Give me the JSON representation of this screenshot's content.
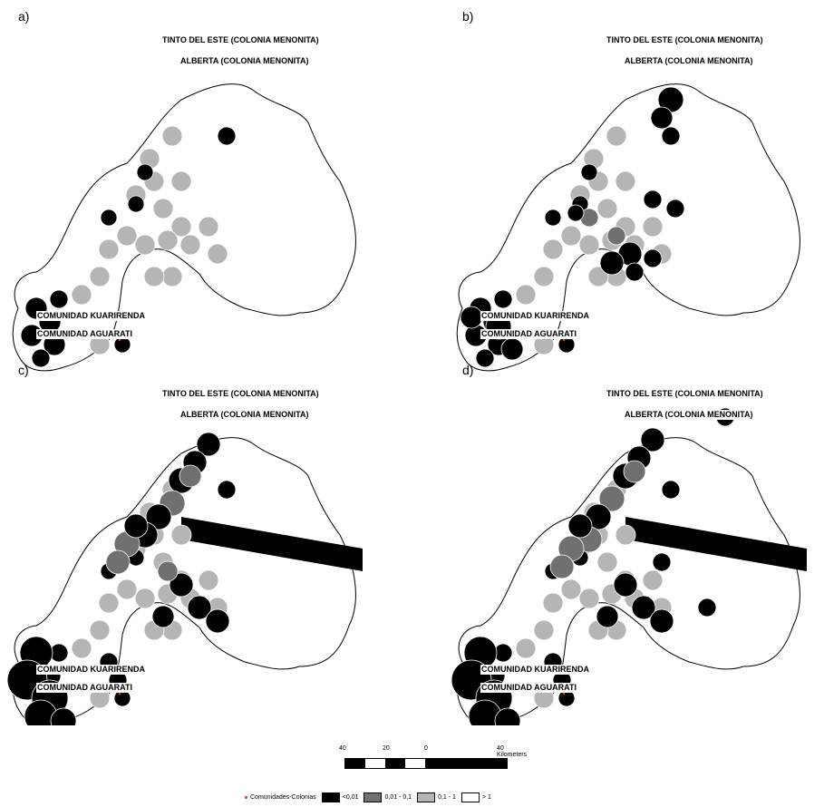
{
  "panels": [
    {
      "id": "a",
      "label": "a)"
    },
    {
      "id": "b",
      "label": "b)"
    },
    {
      "id": "c",
      "label": "c)"
    },
    {
      "id": "d",
      "label": "d)"
    }
  ],
  "places": {
    "tinto": "TINTO DEL ESTE (COLONIA MENONITA)",
    "alberta": "ALBERTA (COLONIA MENONITA)",
    "kuarirenda": "COMUNIDAD KUARIRENDA",
    "aguarati": "COMUNIDAD AGUARATI"
  },
  "scale": {
    "ticks": [
      "40",
      "20",
      "0",
      "40 Kilometers"
    ]
  },
  "legend": {
    "communities": "Comunidades-Colonias",
    "classes": [
      {
        "label": "<0,01",
        "color": "#000000"
      },
      {
        "label": "0,01 - 0,1",
        "color": "#707070"
      },
      {
        "label": "0,1 - 1",
        "color": "#b5b5b5"
      },
      {
        "label": "> 1",
        "color": "#ffffff"
      }
    ]
  },
  "colors": {
    "point": "#c04020",
    "outline": "#000000"
  }
}
